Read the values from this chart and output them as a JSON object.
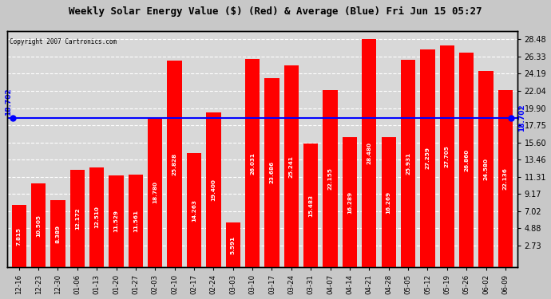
{
  "title": "Weekly Solar Energy Value ($) (Red) & Average (Blue) Fri Jun 15 05:27",
  "copyright": "Copyright 2007 Cartronics.com",
  "categories": [
    "12-16",
    "12-23",
    "12-30",
    "01-06",
    "01-13",
    "01-20",
    "01-27",
    "02-03",
    "02-10",
    "02-17",
    "02-24",
    "03-03",
    "03-10",
    "03-17",
    "03-24",
    "03-31",
    "04-07",
    "04-14",
    "04-21",
    "04-28",
    "05-05",
    "05-12",
    "05-19",
    "05-26",
    "06-02",
    "06-09"
  ],
  "values": [
    7.815,
    10.505,
    8.389,
    12.172,
    12.51,
    11.529,
    11.561,
    18.78,
    25.828,
    14.263,
    19.4,
    5.591,
    26.031,
    23.686,
    25.241,
    15.483,
    22.155,
    16.289,
    28.48,
    16.269,
    25.931,
    27.259,
    27.705,
    26.86,
    24.58,
    22.136
  ],
  "average": 18.702,
  "bar_color": "#FF0000",
  "avg_line_color": "#0000FF",
  "title_color": "#000000",
  "yticks_right": [
    2.73,
    4.88,
    7.02,
    9.17,
    11.31,
    13.46,
    15.6,
    17.75,
    19.9,
    22.04,
    24.19,
    26.33,
    28.48
  ],
  "ymin": 0,
  "ymax": 29.5,
  "bar_text_color": "#FFFFFF",
  "avg_label": "18.702",
  "fig_bg": "#C8C8C8",
  "plot_bg": "#D8D8D8"
}
